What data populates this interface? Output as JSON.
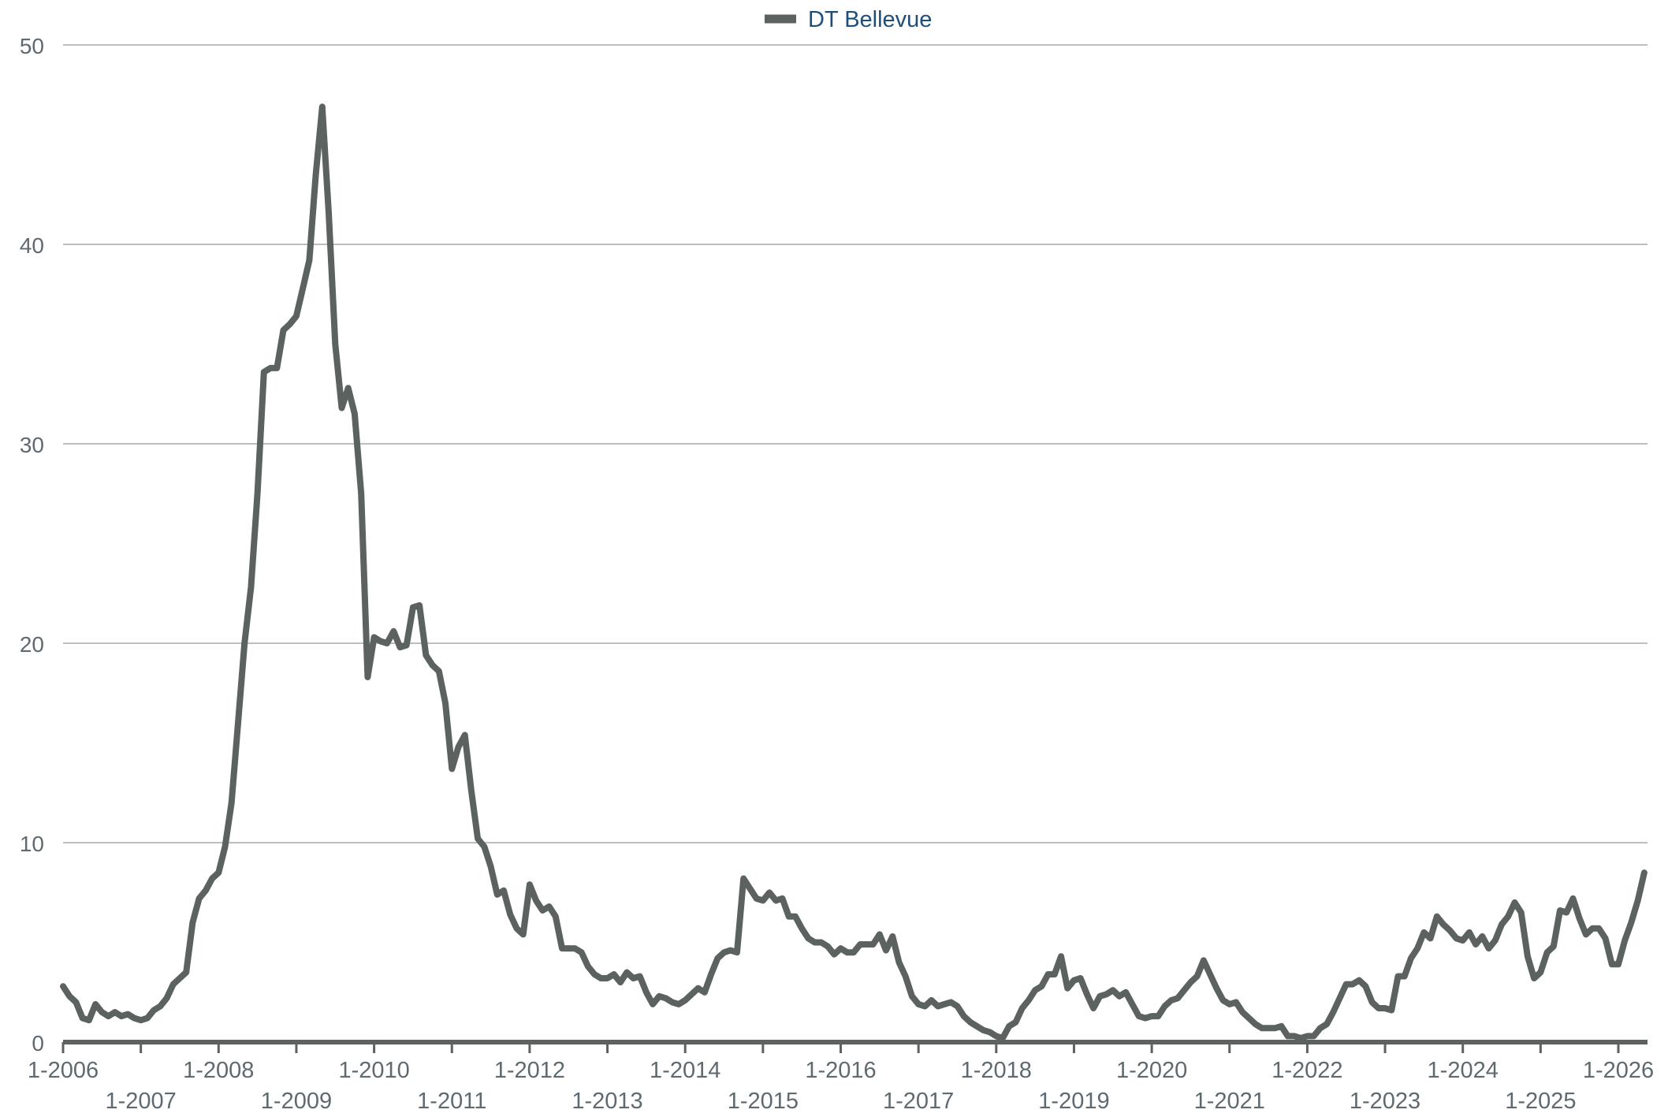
{
  "chart_data": {
    "type": "line",
    "title": "",
    "xlabel": "",
    "ylabel": "",
    "ylim": [
      0,
      50
    ],
    "yticks": [
      0,
      10,
      20,
      30,
      40,
      50
    ],
    "grid": true,
    "legend_position": "top-center",
    "x_tick_labels": [
      "1-2006",
      "1-2007",
      "1-2008",
      "1-2009",
      "1-2010",
      "1-2011",
      "1-2012",
      "1-2013",
      "1-2014",
      "1-2015",
      "1-2016",
      "1-2017",
      "1-2018",
      "1-2019",
      "1-2020",
      "1-2021",
      "1-2022",
      "1-2023",
      "1-2024",
      "1-2025",
      "1-2026"
    ],
    "colors": {
      "series": "#5b625f",
      "grid": "#bdbdbd",
      "axis": "#5b625f",
      "tick_label": "#5f6a70",
      "legend_text": "#1f4e79"
    },
    "series": [
      {
        "name": "DT Bellevue",
        "points": [
          [
            "2006-01",
            2.8
          ],
          [
            "2006-02",
            2.3
          ],
          [
            "2006-03",
            2.0
          ],
          [
            "2006-04",
            1.2
          ],
          [
            "2006-05",
            1.1
          ],
          [
            "2006-06",
            1.9
          ],
          [
            "2006-07",
            1.5
          ],
          [
            "2006-08",
            1.3
          ],
          [
            "2006-09",
            1.5
          ],
          [
            "2006-10",
            1.3
          ],
          [
            "2006-11",
            1.4
          ],
          [
            "2006-12",
            1.2
          ],
          [
            "2007-01",
            1.1
          ],
          [
            "2007-02",
            1.2
          ],
          [
            "2007-03",
            1.6
          ],
          [
            "2007-04",
            1.8
          ],
          [
            "2007-05",
            2.2
          ],
          [
            "2007-06",
            2.9
          ],
          [
            "2007-07",
            3.2
          ],
          [
            "2007-08",
            3.5
          ],
          [
            "2007-09",
            6.0
          ],
          [
            "2007-10",
            7.2
          ],
          [
            "2007-11",
            7.6
          ],
          [
            "2007-12",
            8.2
          ],
          [
            "2008-01",
            8.5
          ],
          [
            "2008-02",
            9.8
          ],
          [
            "2008-03",
            12.0
          ],
          [
            "2008-04",
            16.0
          ],
          [
            "2008-05",
            20.0
          ],
          [
            "2008-06",
            22.8
          ],
          [
            "2008-07",
            27.5
          ],
          [
            "2008-08",
            33.6
          ],
          [
            "2008-09",
            33.8
          ],
          [
            "2008-10",
            33.8
          ],
          [
            "2008-11",
            35.7
          ],
          [
            "2008-12",
            36.0
          ],
          [
            "2009-01",
            36.4
          ],
          [
            "2009-02",
            37.8
          ],
          [
            "2009-03",
            39.2
          ],
          [
            "2009-04",
            43.5
          ],
          [
            "2009-05",
            46.9
          ],
          [
            "2009-06",
            41.5
          ],
          [
            "2009-07",
            35.0
          ],
          [
            "2009-08",
            31.8
          ],
          [
            "2009-09",
            32.8
          ],
          [
            "2009-10",
            31.5
          ],
          [
            "2009-11",
            27.5
          ],
          [
            "2009-12",
            18.3
          ],
          [
            "2010-01",
            20.3
          ],
          [
            "2010-02",
            20.1
          ],
          [
            "2010-03",
            20.0
          ],
          [
            "2010-04",
            20.6
          ],
          [
            "2010-05",
            19.8
          ],
          [
            "2010-06",
            19.9
          ],
          [
            "2010-07",
            21.8
          ],
          [
            "2010-08",
            21.9
          ],
          [
            "2010-09",
            19.4
          ],
          [
            "2010-10",
            18.9
          ],
          [
            "2010-11",
            18.6
          ],
          [
            "2010-12",
            17.0
          ],
          [
            "2011-01",
            13.7
          ],
          [
            "2011-02",
            14.8
          ],
          [
            "2011-03",
            15.4
          ],
          [
            "2011-04",
            12.6
          ],
          [
            "2011-05",
            10.2
          ],
          [
            "2011-06",
            9.8
          ],
          [
            "2011-07",
            8.8
          ],
          [
            "2011-08",
            7.4
          ],
          [
            "2011-09",
            7.6
          ],
          [
            "2011-10",
            6.4
          ],
          [
            "2011-11",
            5.7
          ],
          [
            "2011-12",
            5.4
          ],
          [
            "2012-01",
            7.9
          ],
          [
            "2012-02",
            7.1
          ],
          [
            "2012-03",
            6.6
          ],
          [
            "2012-04",
            6.8
          ],
          [
            "2012-05",
            6.3
          ],
          [
            "2012-06",
            4.7
          ],
          [
            "2012-07",
            4.7
          ],
          [
            "2012-08",
            4.7
          ],
          [
            "2012-09",
            4.5
          ],
          [
            "2012-10",
            3.8
          ],
          [
            "2012-11",
            3.4
          ],
          [
            "2012-12",
            3.2
          ],
          [
            "2013-01",
            3.2
          ],
          [
            "2013-02",
            3.4
          ],
          [
            "2013-03",
            3.0
          ],
          [
            "2013-04",
            3.5
          ],
          [
            "2013-05",
            3.2
          ],
          [
            "2013-06",
            3.3
          ],
          [
            "2013-07",
            2.5
          ],
          [
            "2013-08",
            1.9
          ],
          [
            "2013-09",
            2.3
          ],
          [
            "2013-10",
            2.2
          ],
          [
            "2013-11",
            2.0
          ],
          [
            "2013-12",
            1.9
          ],
          [
            "2014-01",
            2.1
          ],
          [
            "2014-02",
            2.4
          ],
          [
            "2014-03",
            2.7
          ],
          [
            "2014-04",
            2.5
          ],
          [
            "2014-05",
            3.4
          ],
          [
            "2014-06",
            4.2
          ],
          [
            "2014-07",
            4.5
          ],
          [
            "2014-08",
            4.6
          ],
          [
            "2014-09",
            4.5
          ],
          [
            "2014-10",
            8.2
          ],
          [
            "2014-11",
            7.7
          ],
          [
            "2014-12",
            7.2
          ],
          [
            "2015-01",
            7.1
          ],
          [
            "2015-02",
            7.5
          ],
          [
            "2015-03",
            7.1
          ],
          [
            "2015-04",
            7.2
          ],
          [
            "2015-05",
            6.3
          ],
          [
            "2015-06",
            6.3
          ],
          [
            "2015-07",
            5.7
          ],
          [
            "2015-08",
            5.2
          ],
          [
            "2015-09",
            5.0
          ],
          [
            "2015-10",
            5.0
          ],
          [
            "2015-11",
            4.8
          ],
          [
            "2015-12",
            4.4
          ],
          [
            "2016-01",
            4.7
          ],
          [
            "2016-02",
            4.5
          ],
          [
            "2016-03",
            4.5
          ],
          [
            "2016-04",
            4.9
          ],
          [
            "2016-05",
            4.9
          ],
          [
            "2016-06",
            4.9
          ],
          [
            "2016-07",
            5.4
          ],
          [
            "2016-08",
            4.6
          ],
          [
            "2016-09",
            5.3
          ],
          [
            "2016-10",
            4.0
          ],
          [
            "2016-11",
            3.3
          ],
          [
            "2016-12",
            2.3
          ],
          [
            "2017-01",
            1.9
          ],
          [
            "2017-02",
            1.8
          ],
          [
            "2017-03",
            2.1
          ],
          [
            "2017-04",
            1.8
          ],
          [
            "2017-05",
            1.9
          ],
          [
            "2017-06",
            2.0
          ],
          [
            "2017-07",
            1.8
          ],
          [
            "2017-08",
            1.3
          ],
          [
            "2017-09",
            1.0
          ],
          [
            "2017-10",
            0.8
          ],
          [
            "2017-11",
            0.6
          ],
          [
            "2017-12",
            0.5
          ],
          [
            "2018-01",
            0.3
          ],
          [
            "2018-02",
            0.2
          ],
          [
            "2018-03",
            0.8
          ],
          [
            "2018-04",
            1.0
          ],
          [
            "2018-05",
            1.7
          ],
          [
            "2018-06",
            2.1
          ],
          [
            "2018-07",
            2.6
          ],
          [
            "2018-08",
            2.8
          ],
          [
            "2018-09",
            3.4
          ],
          [
            "2018-10",
            3.4
          ],
          [
            "2018-11",
            4.3
          ],
          [
            "2018-12",
            2.7
          ],
          [
            "2019-01",
            3.1
          ],
          [
            "2019-02",
            3.2
          ],
          [
            "2019-03",
            2.4
          ],
          [
            "2019-04",
            1.7
          ],
          [
            "2019-05",
            2.3
          ],
          [
            "2019-06",
            2.4
          ],
          [
            "2019-07",
            2.6
          ],
          [
            "2019-08",
            2.3
          ],
          [
            "2019-09",
            2.5
          ],
          [
            "2019-10",
            1.9
          ],
          [
            "2019-11",
            1.3
          ],
          [
            "2019-12",
            1.2
          ],
          [
            "2020-01",
            1.3
          ],
          [
            "2020-02",
            1.3
          ],
          [
            "2020-03",
            1.8
          ],
          [
            "2020-04",
            2.1
          ],
          [
            "2020-05",
            2.2
          ],
          [
            "2020-06",
            2.6
          ],
          [
            "2020-07",
            3.0
          ],
          [
            "2020-08",
            3.3
          ],
          [
            "2020-09",
            4.1
          ],
          [
            "2020-10",
            3.4
          ],
          [
            "2020-11",
            2.7
          ],
          [
            "2020-12",
            2.1
          ],
          [
            "2021-01",
            1.9
          ],
          [
            "2021-02",
            2.0
          ],
          [
            "2021-03",
            1.5
          ],
          [
            "2021-04",
            1.2
          ],
          [
            "2021-05",
            0.9
          ],
          [
            "2021-06",
            0.7
          ],
          [
            "2021-07",
            0.7
          ],
          [
            "2021-08",
            0.7
          ],
          [
            "2021-09",
            0.8
          ],
          [
            "2021-10",
            0.3
          ],
          [
            "2021-11",
            0.3
          ],
          [
            "2021-12",
            0.2
          ],
          [
            "2022-01",
            0.3
          ],
          [
            "2022-02",
            0.3
          ],
          [
            "2022-03",
            0.7
          ],
          [
            "2022-04",
            0.9
          ],
          [
            "2022-05",
            1.5
          ],
          [
            "2022-06",
            2.2
          ],
          [
            "2022-07",
            2.9
          ],
          [
            "2022-08",
            2.9
          ],
          [
            "2022-09",
            3.1
          ],
          [
            "2022-10",
            2.8
          ],
          [
            "2022-11",
            2.0
          ],
          [
            "2022-12",
            1.7
          ],
          [
            "2023-01",
            1.7
          ],
          [
            "2023-02",
            1.6
          ],
          [
            "2023-03",
            3.3
          ],
          [
            "2023-04",
            3.3
          ],
          [
            "2023-05",
            4.2
          ],
          [
            "2023-06",
            4.7
          ],
          [
            "2023-07",
            5.5
          ],
          [
            "2023-08",
            5.2
          ],
          [
            "2023-09",
            6.3
          ],
          [
            "2023-10",
            5.9
          ],
          [
            "2023-11",
            5.6
          ],
          [
            "2023-12",
            5.2
          ],
          [
            "2024-01",
            5.1
          ],
          [
            "2024-02",
            5.5
          ],
          [
            "2024-03",
            4.9
          ],
          [
            "2024-04",
            5.3
          ],
          [
            "2024-05",
            4.7
          ],
          [
            "2024-06",
            5.1
          ],
          [
            "2024-07",
            5.9
          ],
          [
            "2024-08",
            6.3
          ],
          [
            "2024-09",
            7.0
          ],
          [
            "2024-10",
            6.5
          ],
          [
            "2024-11",
            4.3
          ],
          [
            "2024-12",
            3.2
          ],
          [
            "2025-01",
            3.5
          ],
          [
            "2025-02",
            4.5
          ],
          [
            "2025-03",
            4.8
          ],
          [
            "2025-04",
            6.6
          ],
          [
            "2025-05",
            6.5
          ],
          [
            "2025-06",
            7.2
          ],
          [
            "2025-07",
            6.2
          ],
          [
            "2025-08",
            5.4
          ],
          [
            "2025-09",
            5.7
          ],
          [
            "2025-10",
            5.7
          ],
          [
            "2025-11",
            5.2
          ],
          [
            "2025-12",
            3.9
          ],
          [
            "2026-01",
            3.9
          ],
          [
            "2026-02",
            5.1
          ],
          [
            "2026-03",
            6.0
          ],
          [
            "2026-04",
            7.1
          ],
          [
            "2026-05",
            8.5
          ]
        ]
      }
    ]
  }
}
